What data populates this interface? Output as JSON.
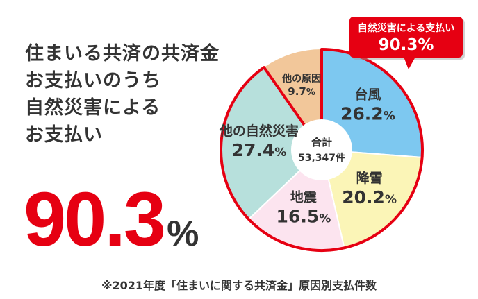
{
  "headline": [
    "住まいる共済の共済金",
    "お支払いのうち",
    "自然災害による",
    "お支払い"
  ],
  "big_figure": {
    "value": "90.3",
    "unit": "%"
  },
  "callout": {
    "label": "自然災害による支払い",
    "value": "90.3%"
  },
  "footnote": "※2021年度「住まいに関する共済金」原因別支払件数",
  "colors": {
    "accent": "#e60012",
    "text": "#333333"
  },
  "chart_data": {
    "type": "pie",
    "title": "原因別支払件数",
    "center_label": "合計",
    "center_value": "53,347件",
    "start_angle_deg": 0,
    "direction": "clockwise",
    "slices": [
      {
        "label": "台風",
        "value": 26.2,
        "display": "26.2",
        "unit": "%",
        "color": "#7dc8f0",
        "natural_disaster": true
      },
      {
        "label": "降雪",
        "value": 20.2,
        "display": "20.2",
        "unit": "%",
        "color": "#fbf5b7",
        "natural_disaster": true
      },
      {
        "label": "地震",
        "value": 16.5,
        "display": "16.5",
        "unit": "%",
        "color": "#fce4ef",
        "natural_disaster": true
      },
      {
        "label": "他の自然災害",
        "value": 27.4,
        "display": "27.4",
        "unit": "%",
        "color": "#b7e0dc",
        "natural_disaster": true
      },
      {
        "label": "他の原因",
        "value": 9.7,
        "display": "9.7",
        "unit": "%",
        "color": "#f2c79a",
        "natural_disaster": false
      }
    ]
  }
}
